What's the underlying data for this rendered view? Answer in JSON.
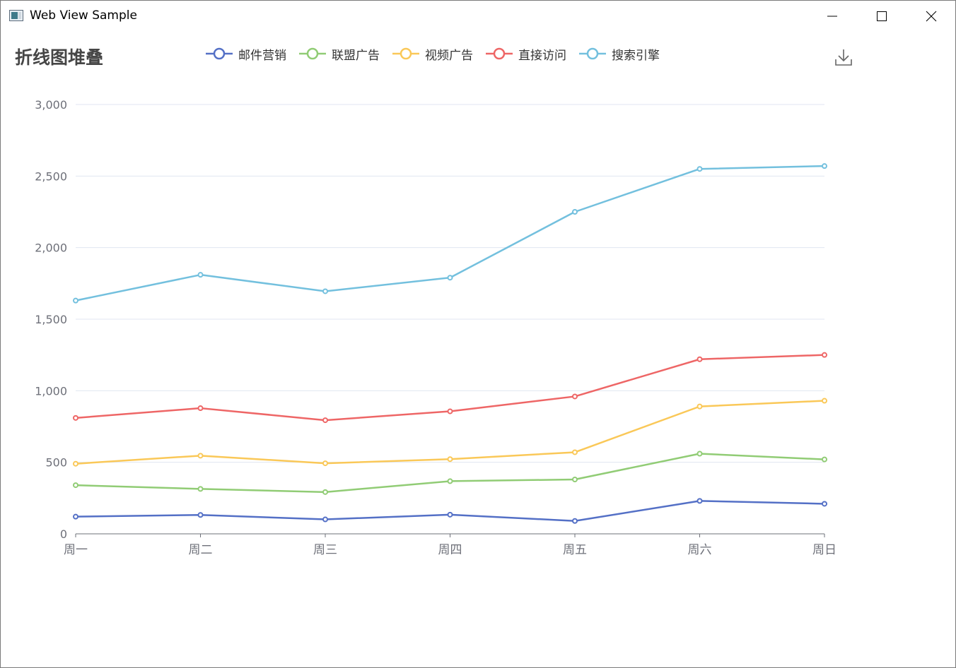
{
  "window": {
    "title": "Web View Sample"
  },
  "chart_data": {
    "type": "line",
    "title": "折线图堆叠",
    "stacked": true,
    "categories": [
      "周一",
      "周二",
      "周三",
      "周四",
      "周五",
      "周六",
      "周日"
    ],
    "series": [
      {
        "name": "邮件营销",
        "color": "#5470c6",
        "values": [
          120,
          132,
          101,
          134,
          90,
          230,
          210
        ]
      },
      {
        "name": "联盟广告",
        "color": "#91cc75",
        "values": [
          220,
          182,
          191,
          234,
          290,
          330,
          310
        ]
      },
      {
        "name": "视频广告",
        "color": "#fac858",
        "values": [
          150,
          232,
          201,
          154,
          190,
          330,
          410
        ]
      },
      {
        "name": "直接访问",
        "color": "#ee6666",
        "values": [
          320,
          332,
          301,
          334,
          390,
          330,
          320
        ]
      },
      {
        "name": "搜索引擎",
        "color": "#73c0de",
        "values": [
          820,
          932,
          901,
          934,
          1290,
          1330,
          1320
        ]
      }
    ],
    "yticks": [
      "0",
      "500",
      "1,000",
      "1,500",
      "2,000",
      "2,500",
      "3,000"
    ],
    "ylim": [
      0,
      3000
    ],
    "grid": true,
    "legend_position": "top"
  }
}
